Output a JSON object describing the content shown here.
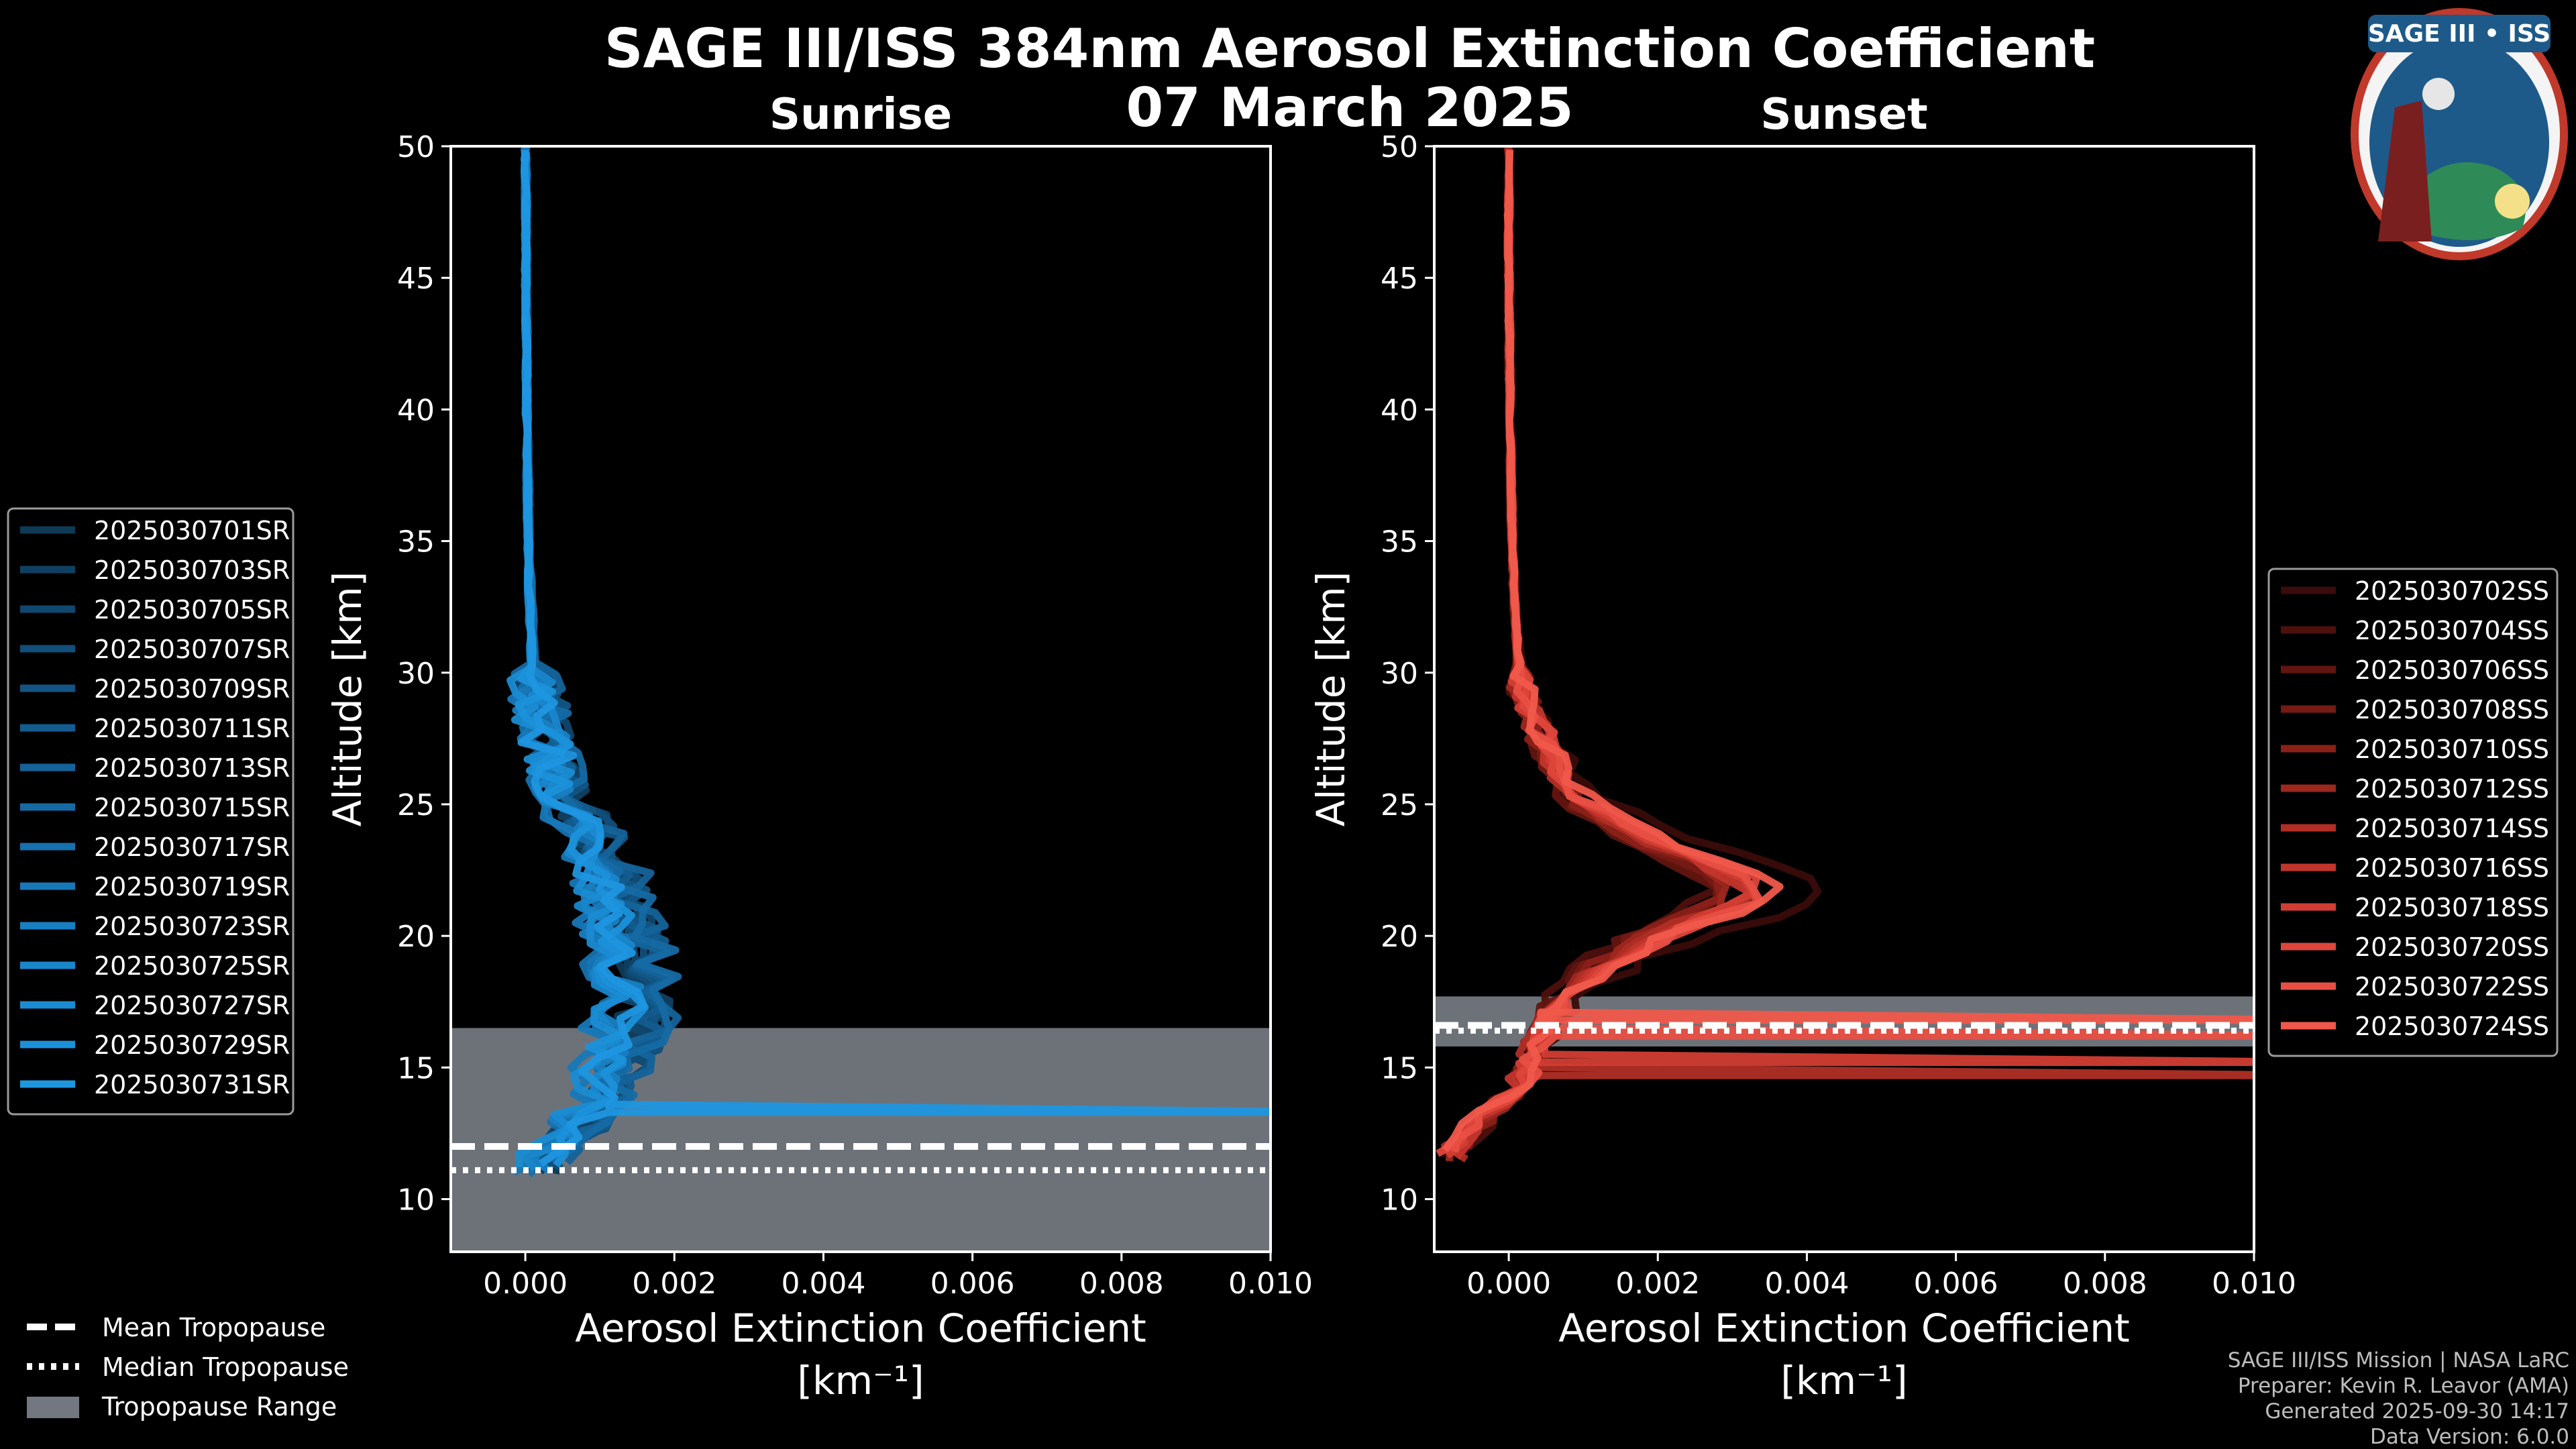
{
  "figure": {
    "title_line1": "SAGE III/ISS 384nm Aerosol Extinction Coefficient",
    "title_line2": "07 March 2025",
    "logo_text": "SAGE III • ISS",
    "credits": [
      "SAGE III/ISS Mission | NASA LaRC",
      "Preparer: Kevin R. Leavor (AMA)",
      "Generated 2025-09-30 14:17",
      "Data Version: 6.0.0"
    ],
    "common_legend": {
      "mean": "Mean Tropopause",
      "median": "Median Tropopause",
      "range": "Tropopause Range"
    }
  },
  "colors": {
    "background": "#000000",
    "sunrise": "#1f8fd8",
    "sunset": "#f05a4a",
    "tropopause_band": "#737880"
  },
  "chart_data": [
    {
      "type": "line",
      "title": "Sunrise",
      "xlabel": "Aerosol Extinction Coefficient",
      "xlabel_units": "[km⁻¹]",
      "ylabel": "Altitude [km]",
      "xlim": [
        -0.001,
        0.01
      ],
      "ylim": [
        8,
        50
      ],
      "xticks": [
        0.0,
        0.002,
        0.004,
        0.006,
        0.008,
        0.01
      ],
      "xtick_labels": [
        "0.000",
        "0.002",
        "0.004",
        "0.006",
        "0.008",
        "0.010"
      ],
      "yticks": [
        10,
        15,
        20,
        25,
        30,
        35,
        40,
        45,
        50
      ],
      "tropopause": {
        "mean": 12.0,
        "median": 11.1,
        "range": [
          8,
          16.5
        ]
      },
      "profile_shape": {
        "altitude": [
          11.5,
          12.5,
          13.5,
          14.5,
          15.5,
          16.5,
          17.5,
          18.5,
          19.5,
          20.5,
          21.5,
          22.5,
          23.5,
          24.5,
          25.5,
          26.5,
          27.5,
          28.5,
          29.5,
          30.5,
          32,
          34,
          36,
          38,
          40,
          42,
          44,
          46,
          48,
          50
        ],
        "extinction": [
          0.0002,
          0.0006,
          0.0009,
          0.0011,
          0.0013,
          0.0014,
          0.0015,
          0.0015,
          0.0014,
          0.0013,
          0.0012,
          0.0011,
          0.0009,
          0.0007,
          0.0005,
          0.0004,
          0.0003,
          0.0002,
          0.00015,
          0.0001,
          8e-05,
          5e-05,
          4e-05,
          3e-05,
          2e-05,
          2e-05,
          1e-05,
          1e-05,
          1e-05,
          0.0
        ]
      },
      "series": [
        {
          "name": "2025030701SR",
          "color": "#0e3a56",
          "tropo_spike": null
        },
        {
          "name": "2025030703SR",
          "color": "#0f4062",
          "tropo_spike": null
        },
        {
          "name": "2025030705SR",
          "color": "#10476e",
          "tropo_spike": null
        },
        {
          "name": "2025030707SR",
          "color": "#114e79",
          "tropo_spike": null
        },
        {
          "name": "2025030709SR",
          "color": "#125584",
          "tropo_spike": null
        },
        {
          "name": "2025030711SR",
          "color": "#135c8f",
          "tropo_spike": null
        },
        {
          "name": "2025030713SR",
          "color": "#14639a",
          "tropo_spike": null
        },
        {
          "name": "2025030715SR",
          "color": "#156aa4",
          "tropo_spike": null
        },
        {
          "name": "2025030717SR",
          "color": "#1671ae",
          "tropo_spike": null
        },
        {
          "name": "2025030719SR",
          "color": "#1778b8",
          "tropo_spike": null
        },
        {
          "name": "2025030723SR",
          "color": "#187fc2",
          "tropo_spike": null
        },
        {
          "name": "2025030725SR",
          "color": "#1986cb",
          "tropo_spike": null
        },
        {
          "name": "2025030727SR",
          "color": "#1a8cd3",
          "tropo_spike": null
        },
        {
          "name": "2025030729SR",
          "color": "#1b91da",
          "tropo_spike": null
        },
        {
          "name": "2025030731SR",
          "color": "#1f96e0",
          "tropo_spike": 13.3
        }
      ]
    },
    {
      "type": "line",
      "title": "Sunset",
      "xlabel": "Aerosol Extinction Coefficient",
      "xlabel_units": "[km⁻¹]",
      "ylabel": "Altitude [km]",
      "xlim": [
        -0.001,
        0.01
      ],
      "ylim": [
        8,
        50
      ],
      "xticks": [
        0.0,
        0.002,
        0.004,
        0.006,
        0.008,
        0.01
      ],
      "xtick_labels": [
        "0.000",
        "0.002",
        "0.004",
        "0.006",
        "0.008",
        "0.010"
      ],
      "yticks": [
        10,
        15,
        20,
        25,
        30,
        35,
        40,
        45,
        50
      ],
      "tropopause": {
        "mean": 16.6,
        "median": 16.4,
        "range": [
          15.8,
          17.7
        ]
      },
      "profile_shape": {
        "altitude": [
          12,
          13,
          14,
          15,
          16,
          17,
          18,
          19,
          20,
          20.5,
          21,
          21.5,
          22,
          22.5,
          23,
          23.5,
          24,
          24.5,
          25,
          25.5,
          26,
          27,
          28,
          29,
          30,
          32,
          34,
          36,
          38,
          40,
          42,
          44,
          46,
          48,
          50
        ],
        "extinction": [
          -0.0008,
          -0.0004,
          0.0,
          0.0003,
          0.0004,
          0.0006,
          0.0009,
          0.0014,
          0.0021,
          0.0026,
          0.0031,
          0.0035,
          0.0034,
          0.0031,
          0.0026,
          0.0022,
          0.0018,
          0.0014,
          0.0011,
          0.0009,
          0.0008,
          0.0006,
          0.0004,
          0.00025,
          0.00015,
          0.0001,
          6e-05,
          4e-05,
          3e-05,
          2e-05,
          1e-05,
          1e-05,
          0.0,
          0.0,
          0.0
        ]
      },
      "series": [
        {
          "name": "2025030702SS",
          "color": "#3a0c0a",
          "tropo_spike": null
        },
        {
          "name": "2025030704SS",
          "color": "#4e100d",
          "tropo_spike": null
        },
        {
          "name": "2025030706SS",
          "color": "#621510",
          "tropo_spike": null
        },
        {
          "name": "2025030708SS",
          "color": "#761a14",
          "tropo_spike": null
        },
        {
          "name": "2025030710SS",
          "color": "#8a2018",
          "tropo_spike": null
        },
        {
          "name": "2025030712SS",
          "color": "#9e271e",
          "tropo_spike": null
        },
        {
          "name": "2025030714SS",
          "color": "#b02e25",
          "tropo_spike": 14.7
        },
        {
          "name": "2025030716SS",
          "color": "#c2352c",
          "tropo_spike": null
        },
        {
          "name": "2025030718SS",
          "color": "#d23d33",
          "tropo_spike": 15.2
        },
        {
          "name": "2025030720SS",
          "color": "#de463b",
          "tropo_spike": null
        },
        {
          "name": "2025030722SS",
          "color": "#e84f43",
          "tropo_spike": 16.2
        },
        {
          "name": "2025030724SS",
          "color": "#f0584b",
          "tropo_spike": 16.8
        }
      ]
    }
  ]
}
